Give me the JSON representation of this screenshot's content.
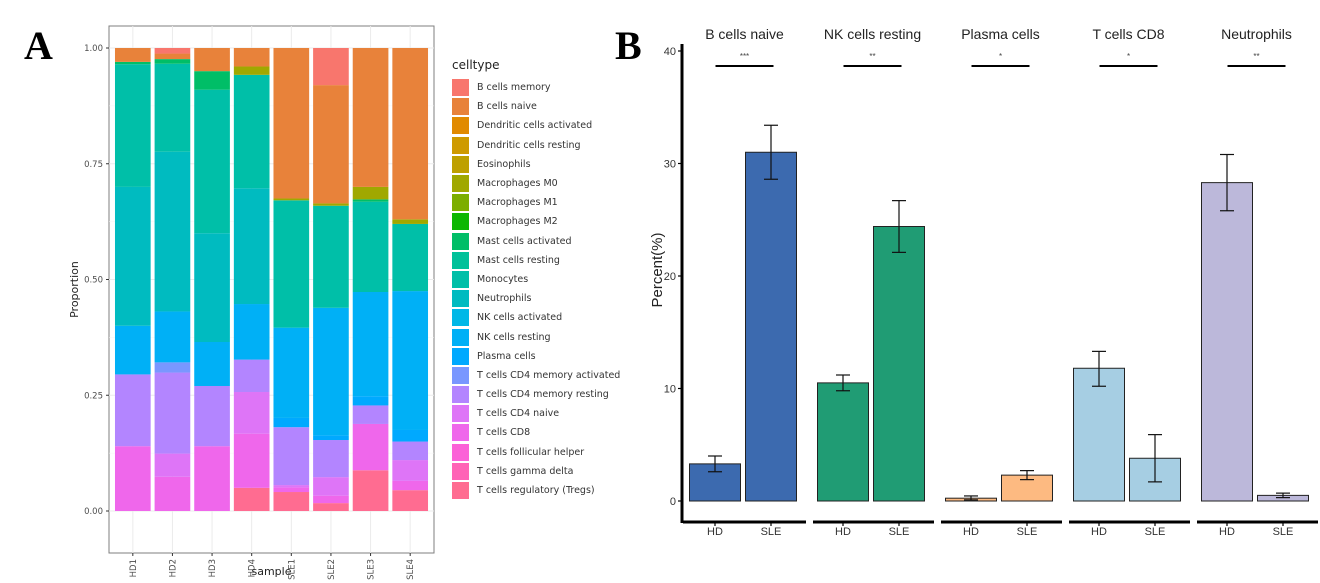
{
  "panels": {
    "a_letter": "A",
    "b_letter": "B"
  },
  "chart_data": [
    {
      "type": "bar",
      "stacked": true,
      "panel": "A",
      "xlabel": "sample",
      "ylabel": "Proportion",
      "ylim": [
        0,
        1
      ],
      "yticks": [
        "0.00",
        "0.25",
        "0.50",
        "0.75",
        "1.00"
      ],
      "yticks_values": [
        0,
        0.25,
        0.5,
        0.75,
        1.0
      ],
      "grid": true,
      "legend_title": "celltype",
      "legend_position": "right",
      "categories": [
        "HD1",
        "HD2",
        "HD3",
        "HD4",
        "SLE1",
        "SLE2",
        "SLE3",
        "SLE4"
      ],
      "series": [
        {
          "name": "B cells memory",
          "color": "#F8766D",
          "values": [
            0,
            0.012,
            0,
            0,
            0,
            0.08,
            0,
            0
          ]
        },
        {
          "name": "B cells naive",
          "color": "#E8823A",
          "values": [
            0.03,
            0.012,
            0.05,
            0.04,
            0.325,
            0.255,
            0.3,
            0.37
          ]
        },
        {
          "name": "Dendritic cells activated",
          "color": "#E18A00",
          "values": [
            0,
            0,
            0,
            0,
            0,
            0,
            0,
            0
          ]
        },
        {
          "name": "Dendritic cells resting",
          "color": "#CE9A00",
          "values": [
            0,
            0,
            0,
            0,
            0,
            0,
            0,
            0
          ]
        },
        {
          "name": "Eosinophils",
          "color": "#BEA000",
          "values": [
            0,
            0,
            0,
            0,
            0,
            0,
            0,
            0
          ]
        },
        {
          "name": "Macrophages M0",
          "color": "#A0A800",
          "values": [
            0,
            0,
            0,
            0.018,
            0.004,
            0.005,
            0.027,
            0.01
          ]
        },
        {
          "name": "Macrophages M1",
          "color": "#7CAE00",
          "values": [
            0,
            0,
            0,
            0,
            0,
            0,
            0,
            0
          ]
        },
        {
          "name": "Macrophages M2",
          "color": "#0CB702",
          "values": [
            0,
            0,
            0,
            0,
            0,
            0,
            0,
            0
          ]
        },
        {
          "name": "Mast cells activated",
          "color": "#00BE67",
          "values": [
            0.005,
            0.01,
            0.04,
            0,
            0,
            0,
            0.005,
            0
          ]
        },
        {
          "name": "Mast cells resting",
          "color": "#00C19A",
          "values": [
            0,
            0,
            0,
            0,
            0,
            0,
            0,
            0
          ]
        },
        {
          "name": "Monocytes",
          "color": "#00BFA8",
          "values": [
            0.265,
            0.19,
            0.31,
            0.245,
            0.275,
            0.22,
            0.195,
            0.145
          ]
        },
        {
          "name": "Neutrophils",
          "color": "#00BBC0",
          "values": [
            0.3,
            0.345,
            0.235,
            0.25,
            0,
            0,
            0,
            0
          ]
        },
        {
          "name": "NK cells activated",
          "color": "#00B8E7",
          "values": [
            0,
            0,
            0,
            0,
            0,
            0,
            0,
            0
          ]
        },
        {
          "name": "NK cells resting",
          "color": "#00B0F6",
          "values": [
            0.105,
            0.11,
            0.095,
            0.12,
            0.195,
            0.275,
            0.225,
            0.3
          ]
        },
        {
          "name": "Plasma cells",
          "color": "#00A9FF",
          "values": [
            0,
            0,
            0,
            0,
            0.02,
            0.01,
            0.02,
            0.025
          ]
        },
        {
          "name": "T cells CD4 memory activated",
          "color": "#7997FF",
          "values": [
            0,
            0.022,
            0,
            0,
            0,
            0,
            0,
            0
          ]
        },
        {
          "name": "T cells CD4 memory resting",
          "color": "#B385FF",
          "values": [
            0.155,
            0.175,
            0.13,
            0.07,
            0.125,
            0.08,
            0.04,
            0.04
          ]
        },
        {
          "name": "T cells CD4 naive",
          "color": "#DE75F7",
          "values": [
            0,
            0.05,
            0,
            0.09,
            0.005,
            0.04,
            0,
            0.045
          ]
        },
        {
          "name": "T cells CD8",
          "color": "#EF67EB",
          "values": [
            0.14,
            0.074,
            0.14,
            0.117,
            0.01,
            0.016,
            0.1,
            0.02
          ]
        },
        {
          "name": "T cells follicular helper",
          "color": "#FB61D7",
          "values": [
            0,
            0,
            0,
            0,
            0,
            0,
            0,
            0
          ]
        },
        {
          "name": "T cells gamma delta",
          "color": "#FF63B6",
          "values": [
            0,
            0,
            0,
            0,
            0,
            0,
            0,
            0
          ]
        },
        {
          "name": "T cells regulatory (Tregs)",
          "color": "#FF6C91",
          "values": [
            0,
            0,
            0,
            0.05,
            0.041,
            0.017,
            0.088,
            0.045
          ]
        }
      ]
    },
    {
      "type": "bar",
      "panel": "B",
      "ylabel": "Percent(%)",
      "ylim": [
        0,
        40
      ],
      "yticks": [
        "0",
        "10",
        "20",
        "30",
        "40"
      ],
      "yticks_values": [
        0,
        10,
        20,
        30,
        40
      ],
      "grid": false,
      "groups": [
        {
          "title": "B cells naive",
          "significance": "***",
          "color": "#3C6AAF",
          "bars": [
            {
              "label": "HD",
              "value": 3.3,
              "err_low": 2.6,
              "err_high": 4.0
            },
            {
              "label": "SLE",
              "value": 31.0,
              "err_low": 28.6,
              "err_high": 33.4
            }
          ]
        },
        {
          "title": "NK cells resting",
          "significance": "**",
          "color": "#209C74",
          "bars": [
            {
              "label": "HD",
              "value": 10.5,
              "err_low": 9.8,
              "err_high": 11.2
            },
            {
              "label": "SLE",
              "value": 24.4,
              "err_low": 22.1,
              "err_high": 26.7
            }
          ]
        },
        {
          "title": "Plasma cells",
          "significance": "*",
          "color": "#FDBA81",
          "bars": [
            {
              "label": "HD",
              "value": 0.25,
              "err_low": 0.1,
              "err_high": 0.45
            },
            {
              "label": "SLE",
              "value": 2.3,
              "err_low": 1.9,
              "err_high": 2.7
            }
          ]
        },
        {
          "title": "T cells CD8",
          "significance": "*",
          "color": "#A6CEE3",
          "bars": [
            {
              "label": "HD",
              "value": 11.8,
              "err_low": 10.2,
              "err_high": 13.3
            },
            {
              "label": "SLE",
              "value": 3.8,
              "err_low": 1.7,
              "err_high": 5.9
            }
          ]
        },
        {
          "title": "Neutrophils",
          "significance": "**",
          "color": "#BCB8DA",
          "bars": [
            {
              "label": "HD",
              "value": 28.3,
              "err_low": 25.8,
              "err_high": 30.8
            },
            {
              "label": "SLE",
              "value": 0.5,
              "err_low": 0.3,
              "err_high": 0.7
            }
          ]
        }
      ]
    }
  ]
}
